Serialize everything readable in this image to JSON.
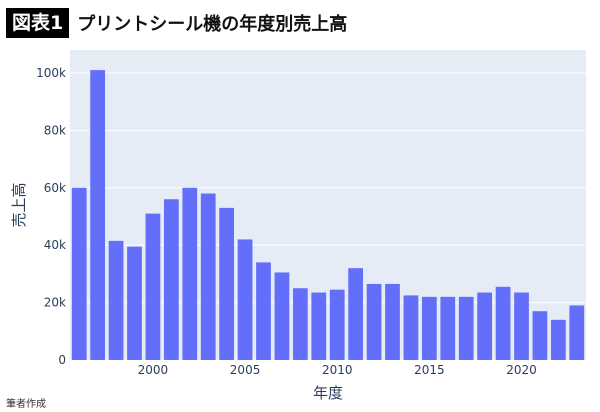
{
  "header": {
    "badge": "図表1",
    "title": "プリントシール機の年度別売上高"
  },
  "source": "筆者作成",
  "colors": {
    "bar": "#636EFA",
    "plot_bg": "#E5ECF6",
    "grid": "#ffffff",
    "tick_text": "#2a3f5f"
  },
  "chart_data": {
    "type": "bar",
    "xlabel": "年度",
    "ylabel": "売上高",
    "x": [
      1996,
      1997,
      1998,
      1999,
      2000,
      2001,
      2002,
      2003,
      2004,
      2005,
      2006,
      2007,
      2008,
      2009,
      2010,
      2011,
      2012,
      2013,
      2014,
      2015,
      2016,
      2017,
      2018,
      2019,
      2020,
      2021,
      2022,
      2023
    ],
    "values": [
      60000,
      101000,
      41500,
      39500,
      51000,
      56000,
      60000,
      58000,
      53000,
      42000,
      34000,
      30500,
      25000,
      23500,
      24500,
      32000,
      26500,
      26500,
      22500,
      22000,
      22000,
      22000,
      23500,
      25500,
      23500,
      17000,
      14000,
      19000
    ],
    "ylim": [
      0,
      108000
    ],
    "xlim": [
      1995.5,
      2023.5
    ],
    "yticks": [
      0,
      20000,
      40000,
      60000,
      80000,
      100000
    ],
    "ytick_labels": [
      "0",
      "20k",
      "40k",
      "60k",
      "80k",
      "100k"
    ],
    "xticks": [
      2000,
      2005,
      2010,
      2015,
      2020
    ],
    "xtick_labels": [
      "2000",
      "2005",
      "2010",
      "2015",
      "2020"
    ],
    "grid": true
  }
}
